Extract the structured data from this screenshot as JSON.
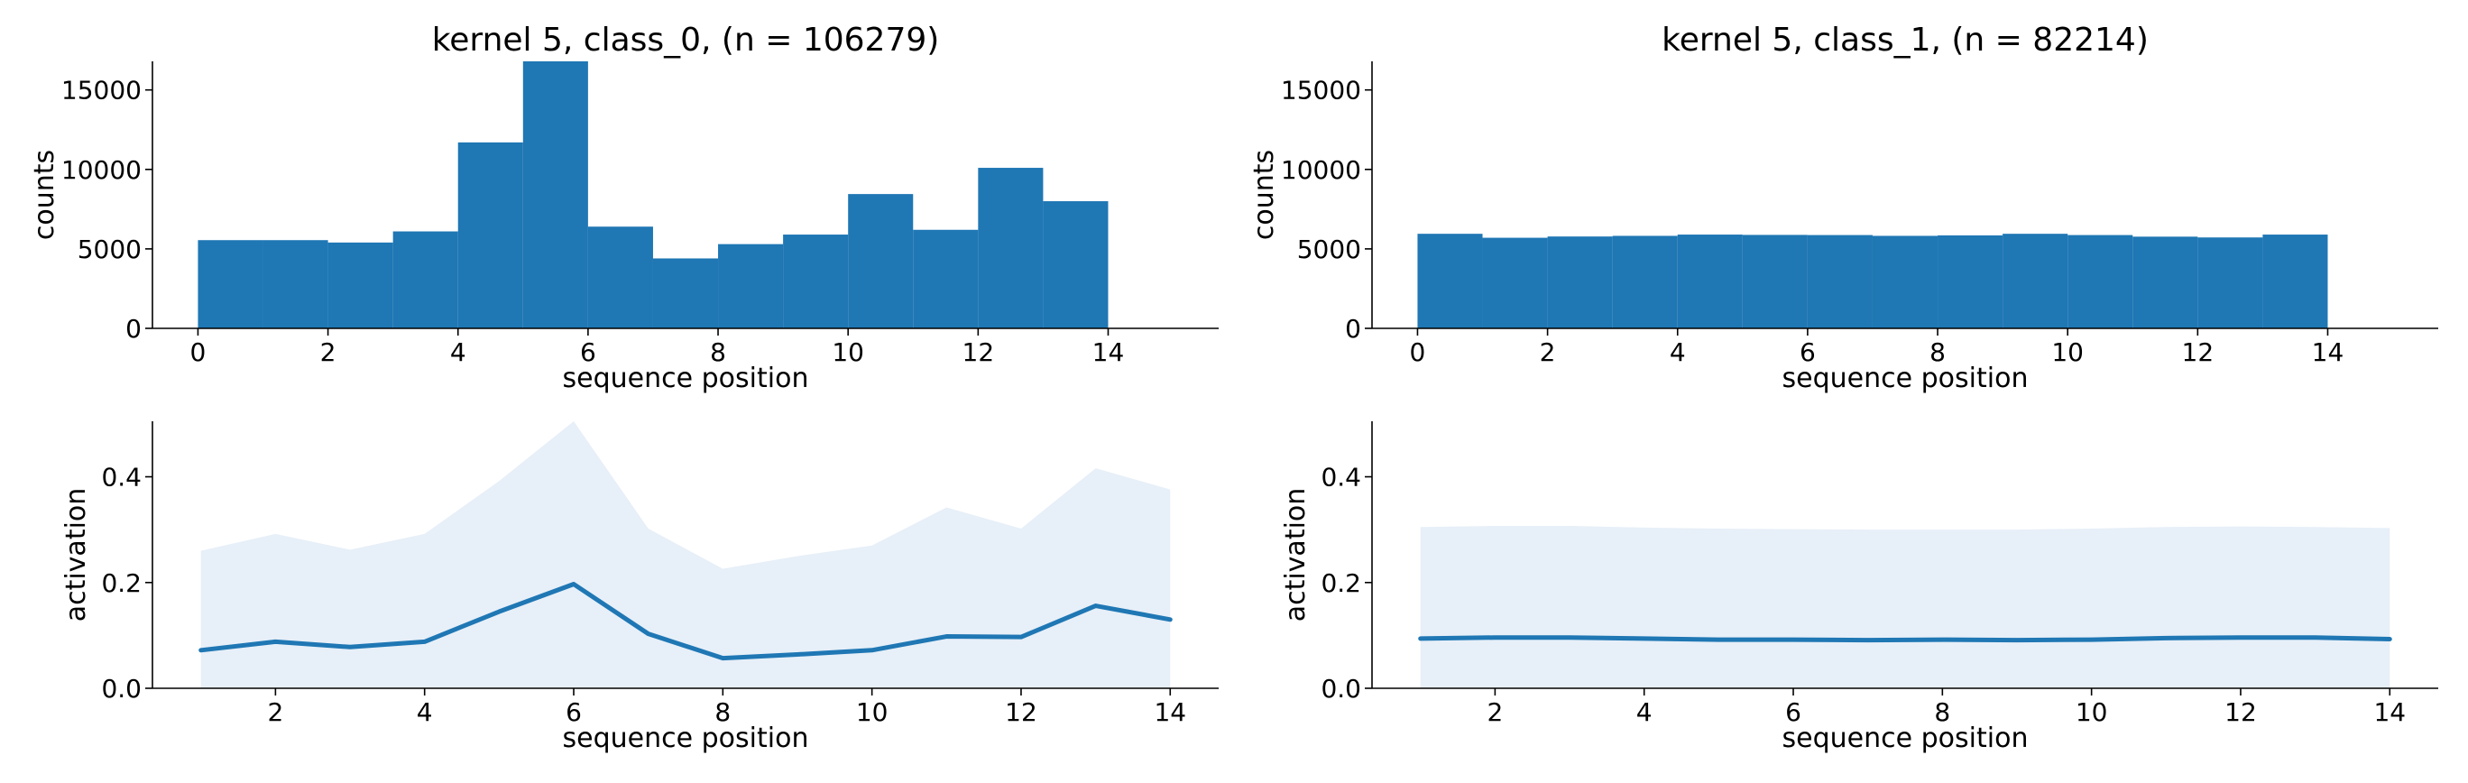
{
  "chart_data": [
    {
      "id": "hist_class0",
      "type": "bar",
      "title": "kernel 5, class_0, (n = 106279)",
      "xlabel": "sequence position",
      "ylabel": "counts",
      "xlim": [
        -0.7,
        15.7
      ],
      "ylim": [
        0,
        16800
      ],
      "xticks": [
        "0",
        "2",
        "4",
        "6",
        "8",
        "10",
        "12",
        "14"
      ],
      "yticks": [
        "0",
        "5000",
        "10000",
        "15000"
      ],
      "bin_edges": [
        0,
        1,
        2,
        3,
        4,
        5,
        6,
        7,
        8,
        9,
        10,
        11,
        12,
        13,
        14
      ],
      "values": [
        5550,
        5550,
        5400,
        6100,
        11700,
        16800,
        6400,
        4400,
        5300,
        5900,
        8450,
        6200,
        10100,
        8000
      ],
      "color": "#1f77b4",
      "grid": false
    },
    {
      "id": "hist_class1",
      "type": "bar",
      "title": "kernel 5, class_1, (n = 82214)",
      "xlabel": "sequence position",
      "ylabel": "counts",
      "xlim": [
        -0.7,
        15.7
      ],
      "ylim": [
        0,
        16800
      ],
      "xticks": [
        "0",
        "2",
        "4",
        "6",
        "8",
        "10",
        "12",
        "14"
      ],
      "yticks": [
        "0",
        "5000",
        "10000",
        "15000"
      ],
      "bin_edges": [
        0,
        1,
        2,
        3,
        4,
        5,
        6,
        7,
        8,
        9,
        10,
        11,
        12,
        13,
        14
      ],
      "values": [
        5950,
        5700,
        5780,
        5820,
        5900,
        5880,
        5870,
        5820,
        5850,
        5950,
        5870,
        5770,
        5720,
        5900
      ],
      "color": "#1f77b4",
      "grid": false
    },
    {
      "id": "line_class0",
      "type": "line",
      "title": "",
      "xlabel": "sequence position",
      "ylabel": "activation",
      "xlim": [
        0.35,
        14.65
      ],
      "ylim": [
        0,
        0.505
      ],
      "xticks": [
        "2",
        "4",
        "6",
        "8",
        "10",
        "12",
        "14"
      ],
      "yticks": [
        "0.0",
        "0.2",
        "0.4"
      ],
      "x": [
        1,
        2,
        3,
        4,
        5,
        6,
        7,
        8,
        9,
        10,
        11,
        12,
        13,
        14
      ],
      "mean": [
        0.072,
        0.088,
        0.078,
        0.088,
        0.145,
        0.197,
        0.103,
        0.057,
        0.064,
        0.072,
        0.098,
        0.097,
        0.156,
        0.13
      ],
      "upper": [
        0.26,
        0.292,
        0.262,
        0.292,
        0.392,
        0.505,
        0.302,
        0.226,
        0.25,
        0.27,
        0.342,
        0.302,
        0.416,
        0.376
      ],
      "lower": [
        0,
        0,
        0,
        0,
        0,
        0,
        0,
        0,
        0,
        0,
        0,
        0,
        0,
        0
      ],
      "line_color": "#1f77b4",
      "band_color": "#e7eff8",
      "grid": false
    },
    {
      "id": "line_class1",
      "type": "line",
      "title": "",
      "xlabel": "sequence position",
      "ylabel": "activation",
      "xlim": [
        0.35,
        14.65
      ],
      "ylim": [
        0,
        0.505
      ],
      "xticks": [
        "2",
        "4",
        "6",
        "8",
        "10",
        "12",
        "14"
      ],
      "yticks": [
        "0.0",
        "0.2",
        "0.4"
      ],
      "x": [
        1,
        2,
        3,
        4,
        5,
        6,
        7,
        8,
        9,
        10,
        11,
        12,
        13,
        14
      ],
      "mean": [
        0.094,
        0.096,
        0.096,
        0.094,
        0.092,
        0.092,
        0.091,
        0.092,
        0.091,
        0.092,
        0.095,
        0.096,
        0.096,
        0.093
      ],
      "upper": [
        0.305,
        0.307,
        0.307,
        0.304,
        0.302,
        0.301,
        0.3,
        0.3,
        0.3,
        0.302,
        0.305,
        0.306,
        0.305,
        0.303
      ],
      "lower": [
        0,
        0,
        0,
        0,
        0,
        0,
        0,
        0,
        0,
        0,
        0,
        0,
        0,
        0
      ],
      "line_color": "#1f77b4",
      "band_color": "#e7eff8",
      "grid": false
    }
  ]
}
